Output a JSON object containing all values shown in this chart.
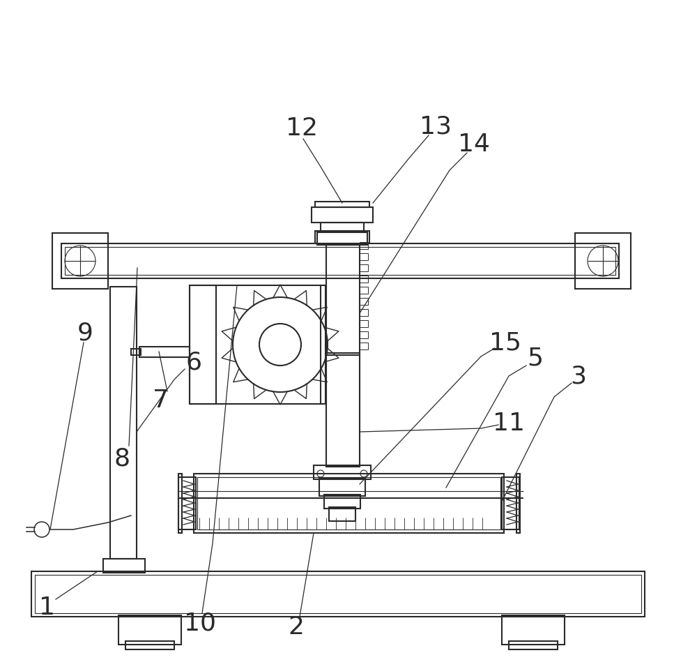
{
  "bg_color": "#ffffff",
  "lc": "#2a2a2a",
  "lw": 1.5,
  "tlw": 0.8,
  "figsize": [
    10.0,
    9.59
  ],
  "dpi": 100
}
